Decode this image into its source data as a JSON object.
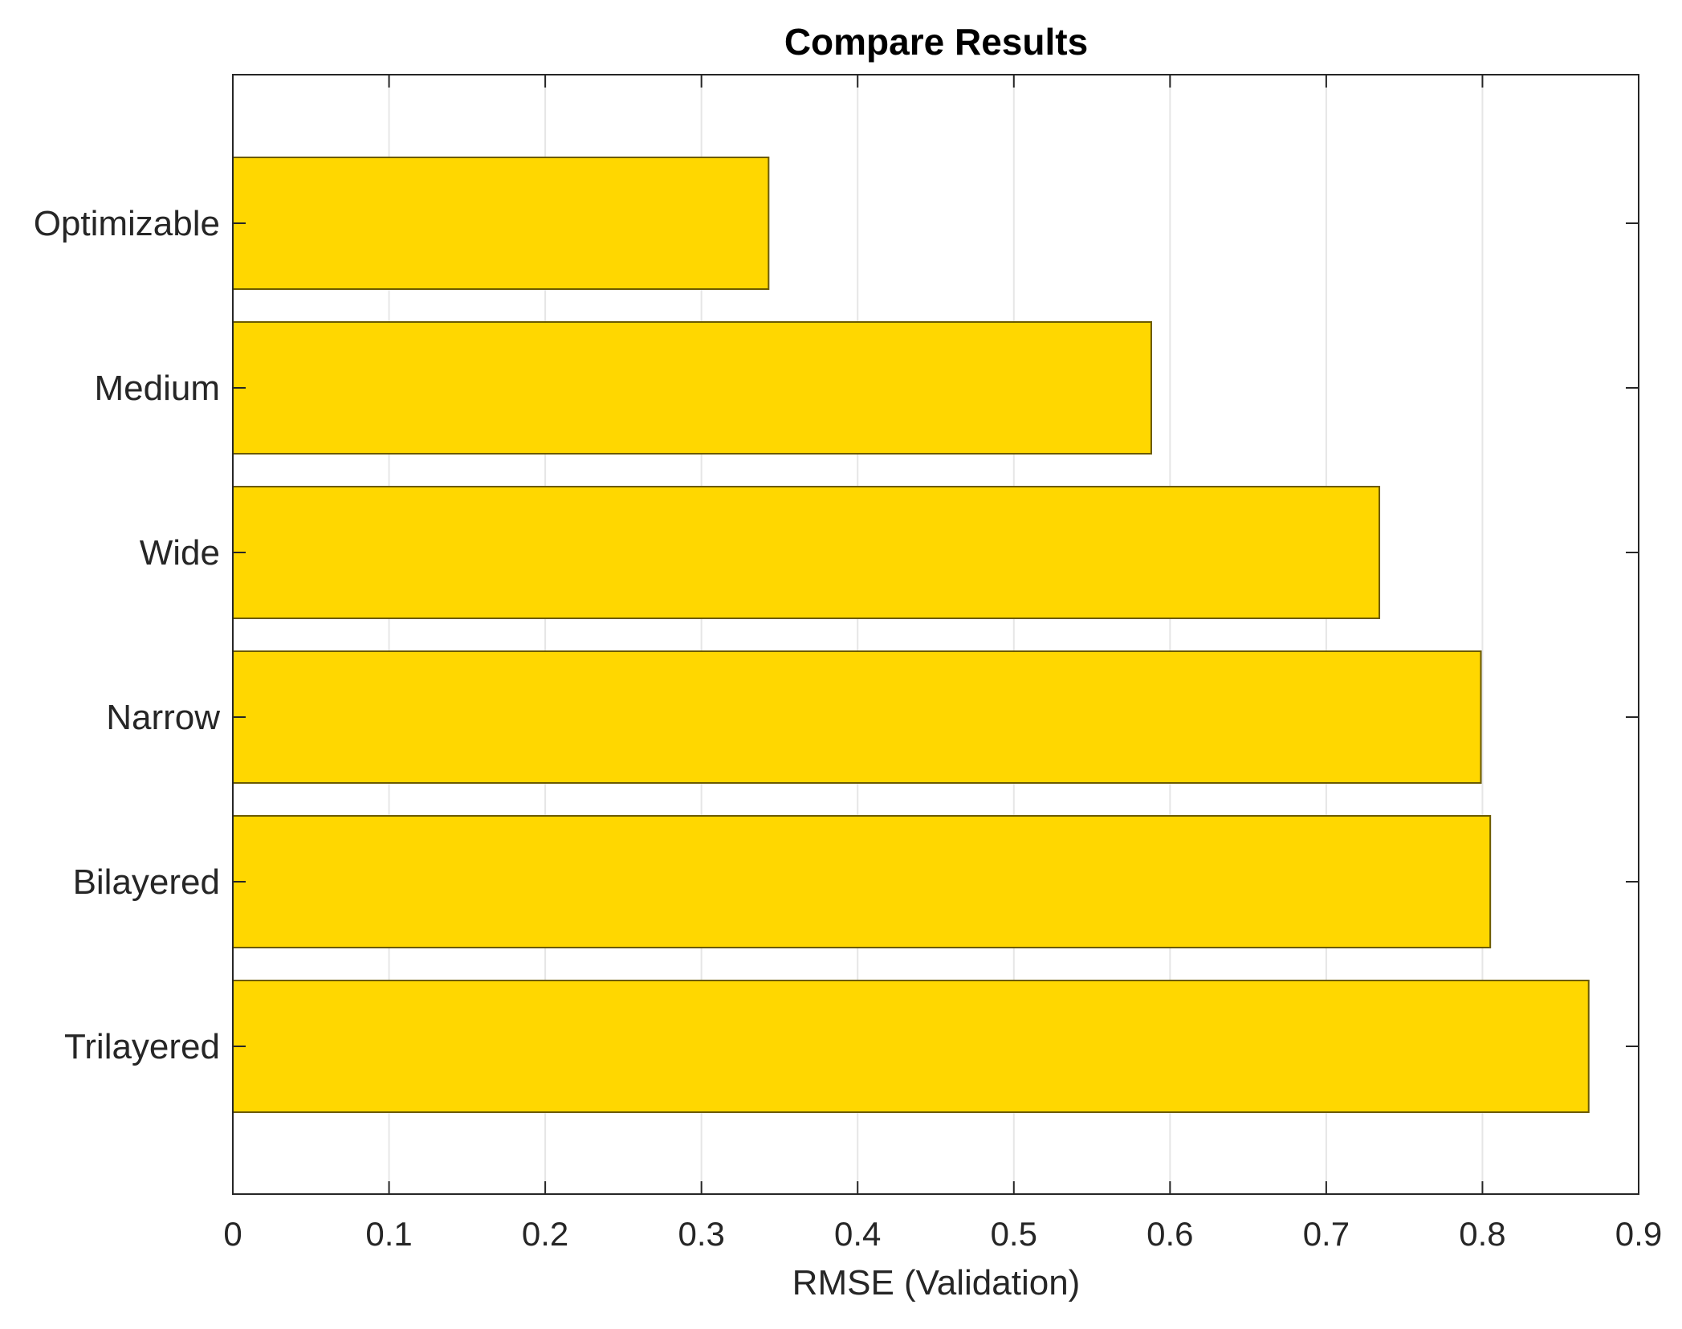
{
  "chart_data": {
    "type": "bar",
    "orientation": "horizontal",
    "title": "Compare Results",
    "xlabel": "RMSE (Validation)",
    "ylabel": "",
    "categories": [
      "Optimizable",
      "Medium",
      "Wide",
      "Narrow",
      "Bilayered",
      "Trilayered"
    ],
    "values": [
      0.343,
      0.588,
      0.734,
      0.799,
      0.805,
      0.868
    ],
    "xlim": [
      0,
      0.9
    ],
    "xticks": [
      "0",
      "0.1",
      "0.2",
      "0.3",
      "0.4",
      "0.5",
      "0.6",
      "0.7",
      "0.8",
      "0.9"
    ],
    "grid": "vertical",
    "legend": "none",
    "colors": {
      "bar_fill": "#FFD700",
      "bar_edge": "#6b5a00",
      "grid": "#e6e6e6",
      "axes": "#262626"
    }
  }
}
